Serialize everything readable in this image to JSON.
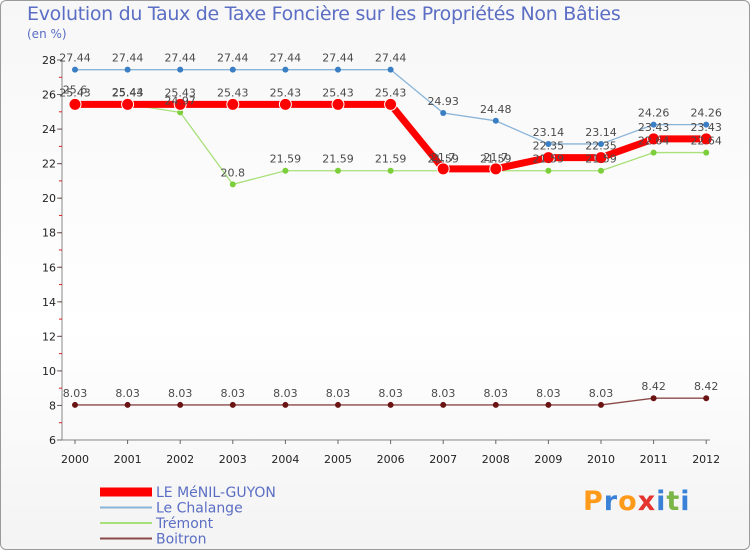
{
  "header": {
    "title": "Evolution du Taux de Taxe Foncière sur les Propriétés Non Bâties",
    "subtitle": "(en %)"
  },
  "logo": {
    "text": "Proxiti",
    "letters": [
      "P",
      "r",
      "o",
      "x",
      "i",
      "t",
      "i"
    ],
    "colors": [
      "#ff9a1a",
      "#3a82d8",
      "#ff9a1a",
      "#e3342f",
      "#3a82d8",
      "#7ab648",
      "#3a82d8"
    ]
  },
  "chart_data": {
    "type": "line",
    "categories": [
      "2000",
      "2001",
      "2002",
      "2003",
      "2004",
      "2005",
      "2006",
      "2007",
      "2008",
      "2009",
      "2010",
      "2011",
      "2012"
    ],
    "ylim": [
      6,
      28
    ],
    "yticks": [
      6,
      8,
      10,
      12,
      14,
      16,
      18,
      20,
      22,
      24,
      26,
      28
    ],
    "grid": false,
    "legend_position": "bottom-left",
    "series": [
      {
        "name": "LE MéNIL-GUYON",
        "color": "#ff0000",
        "line_width": 7,
        "marker_radius": 6,
        "marker_fill": "#ff0000",
        "values": [
          25.43,
          25.43,
          25.43,
          25.43,
          25.43,
          25.43,
          25.43,
          21.7,
          21.7,
          22.35,
          22.35,
          23.43,
          23.43
        ],
        "labels": [
          "25.43",
          "25.43",
          "25.43",
          "25.43",
          "25.43",
          "25.43",
          "25.43",
          "21.7",
          "21.7",
          "22.35",
          "22.35",
          "23.43",
          "23.43"
        ]
      },
      {
        "name": "Le Chalange",
        "color": "#8ab4d8",
        "line_width": 1.3,
        "marker_radius": 3,
        "marker_fill": "#3a7fc4",
        "values": [
          27.44,
          27.44,
          27.44,
          27.44,
          27.44,
          27.44,
          27.44,
          24.93,
          24.48,
          23.14,
          23.14,
          24.26,
          24.26
        ],
        "labels": [
          "27.44",
          "27.44",
          "27.44",
          "27.44",
          "27.44",
          "27.44",
          "27.44",
          "24.93",
          "24.48",
          "23.14",
          "23.14",
          "24.26",
          "24.26"
        ]
      },
      {
        "name": "Trémont",
        "color": "#a8e07a",
        "line_width": 1.3,
        "marker_radius": 3,
        "marker_fill": "#7ccf3a",
        "values": [
          25.6,
          25.44,
          24.97,
          20.8,
          21.59,
          21.59,
          21.59,
          21.59,
          21.59,
          21.59,
          21.59,
          22.64,
          22.64
        ],
        "labels": [
          "25.6",
          "25.44",
          "24.97",
          "20.8",
          "21.59",
          "21.59",
          "21.59",
          "21.59",
          "21.59",
          "21.59",
          "21.59",
          "22.64",
          "22.64"
        ]
      },
      {
        "name": "Boitron",
        "color": "#8b4a4a",
        "line_width": 1.3,
        "marker_radius": 3,
        "marker_fill": "#6b1414",
        "values": [
          8.03,
          8.03,
          8.03,
          8.03,
          8.03,
          8.03,
          8.03,
          8.03,
          8.03,
          8.03,
          8.03,
          8.42,
          8.42
        ],
        "labels": [
          "8.03",
          "8.03",
          "8.03",
          "8.03",
          "8.03",
          "8.03",
          "8.03",
          "8.03",
          "8.03",
          "8.03",
          "8.03",
          "8.42",
          "8.42"
        ]
      }
    ]
  }
}
